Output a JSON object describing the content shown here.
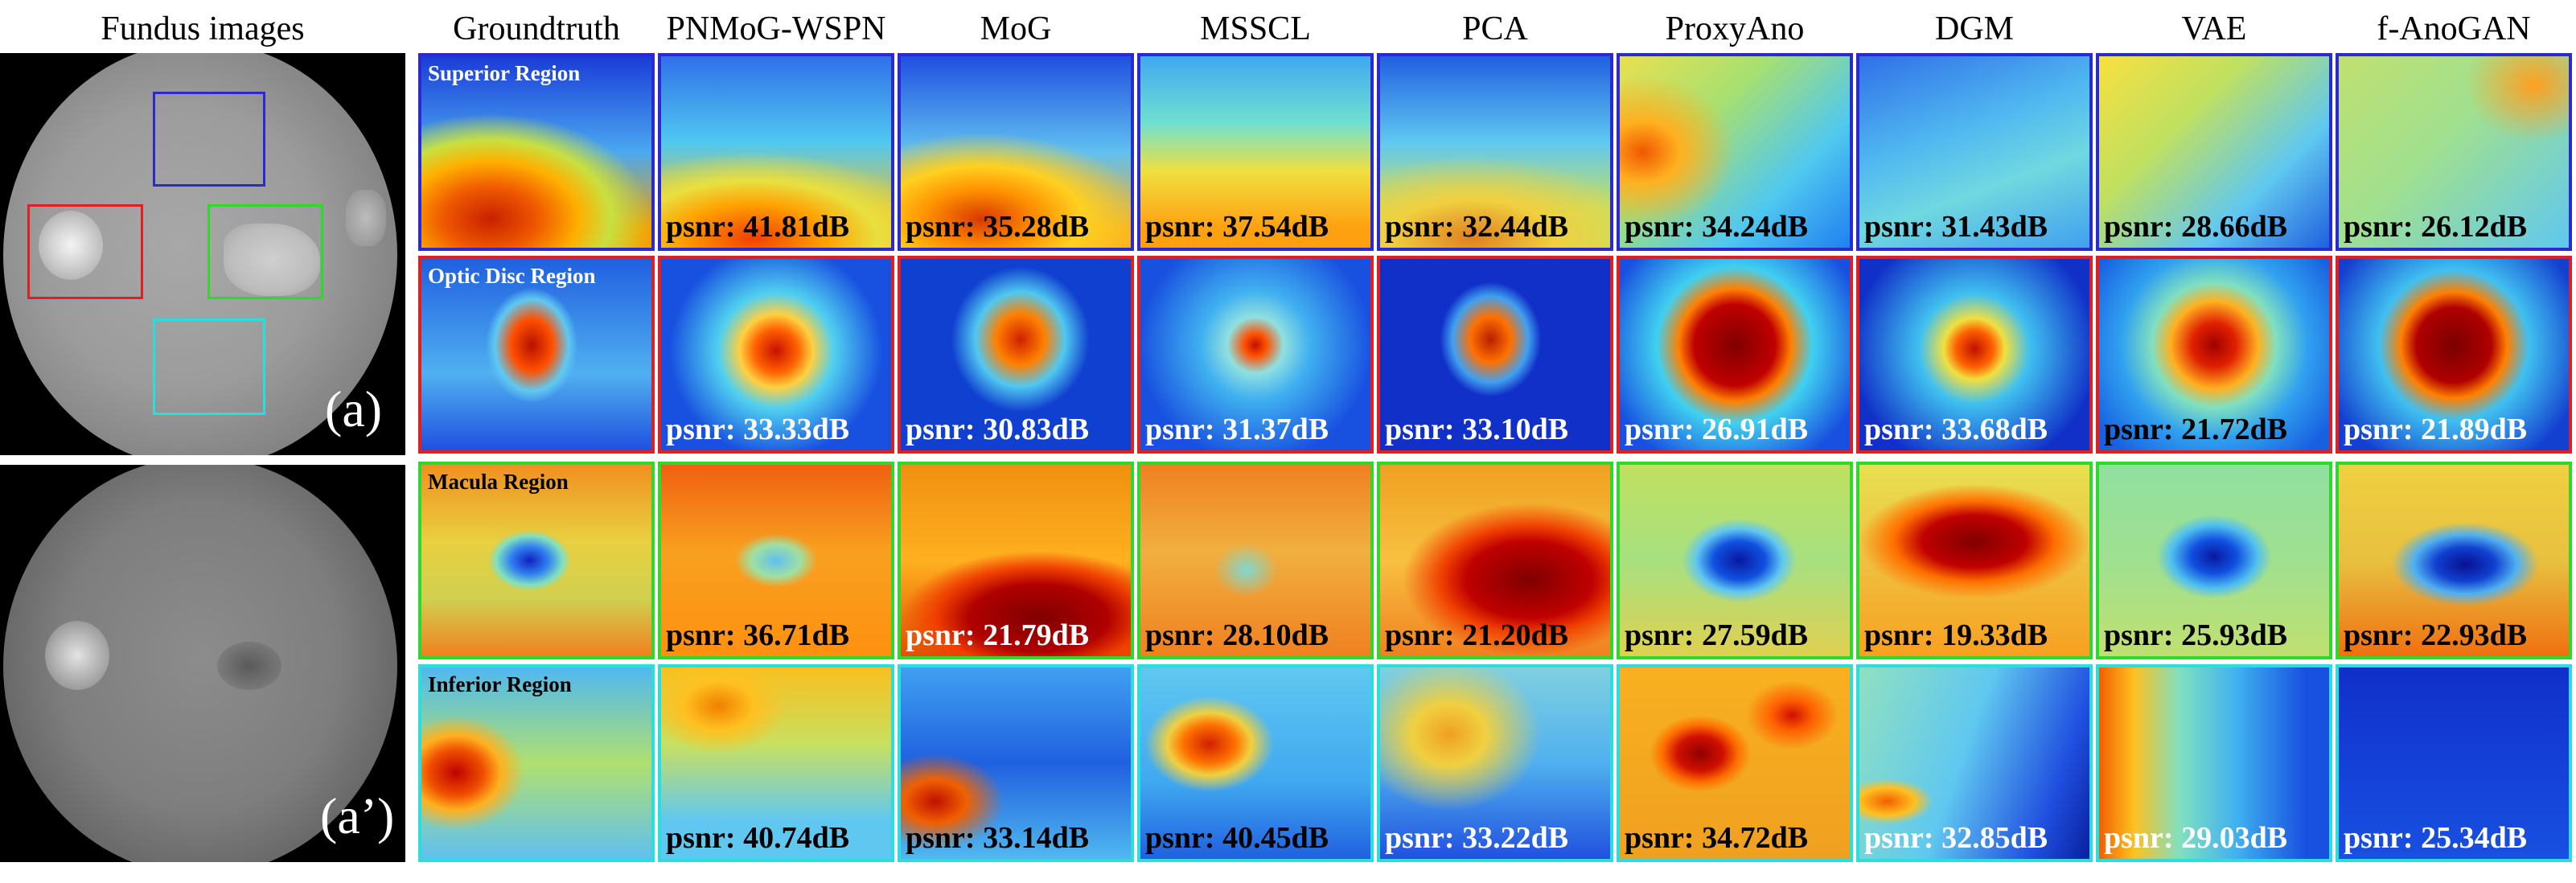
{
  "headers": {
    "fundus": "Fundus images",
    "cols": [
      "Groundtruth",
      "PNMoG-WSPN",
      "MoG",
      "MSSCL",
      "PCA",
      "ProxyAno",
      "DGM",
      "VAE",
      "f-AnoGAN"
    ]
  },
  "fundus_labels": {
    "a": "(a)",
    "a2": "(a’)"
  },
  "colors": {
    "superior": "#2a2ad0",
    "optic": "#e02020",
    "macula": "#2ed82e",
    "inferior": "#2adede",
    "psnr_dark": "#000000",
    "psnr_light": "#ffffff"
  },
  "rows": [
    {
      "region": "Superior Region",
      "border": "superior",
      "label_color": "#ffffff",
      "psnr": [
        "",
        "psnr: 41.81dB",
        "psnr: 35.28dB",
        "psnr: 37.54dB",
        "psnr: 32.44dB",
        "psnr: 34.24dB",
        "psnr: 31.43dB",
        "psnr: 28.66dB",
        "psnr: 26.12dB"
      ],
      "psnr_color": [
        "",
        "dark",
        "dark",
        "dark",
        "dark",
        "dark",
        "dark",
        "dark",
        "dark"
      ],
      "heat": [
        "radial-gradient(ellipse 70% 55% at 30% 85%, #c82000 0%, #f05a00 30%, #ffb000 55%, #c8e040 75%, rgba(60,170,255,0) 100%), linear-gradient(#1a3cd8, #4aa8f0 50%, #f4a000 90%)",
        "radial-gradient(ellipse 90% 50% at 40% 95%, #f04000 0%, #ffa000 35%, #e8e040 60%, rgba(70,200,230,0) 90%), linear-gradient(#3070e8, #50c8f0 45%, #f8c020 85%)",
        "radial-gradient(ellipse 80% 50% at 35% 85%, #d83800 0%, #ff9000 30%, #ffd020 55%, rgba(80,200,230,0) 90%), linear-gradient(#2050e0, #60c0f0 50%, #f8b020 90%)",
        "linear-gradient(#40a8f0, #70e0d0 35%, #f0e040 60%, #ffa010 90%)",
        "radial-gradient(ellipse 90% 50% at 40% 95%, #e08020 0%, #f0d040 40%, rgba(100,210,210,0) 85%), linear-gradient(#2060e0, #60c8f0 45%, #c8e060 80%)",
        "radial-gradient(ellipse 40% 40% at 10% 50%, #f05800 0%, #ffb020 40%, rgba(240,230,60,0) 100%), linear-gradient(135deg, #e8e050, #a8e070 35%, #50c8f0 70%, #2080f0)",
        "linear-gradient(160deg, #3070e8, #50b8f0 40%, #70d8e0 65%, #40a0f0)",
        "linear-gradient(135deg, #f8e040, #c0e060 35%, #60c8f0 70%, #2060e0)",
        "radial-gradient(ellipse 30% 30% at 85% 15%, #ffa020, rgba(240,220,80,0) 100%), linear-gradient(135deg, #c0e070, #a0e090 45%, #60c8f0)"
      ]
    },
    {
      "region": "Optic Disc Region",
      "border": "optic",
      "label_color": "#ffffff",
      "psnr": [
        "",
        "psnr: 33.33dB",
        "psnr: 30.83dB",
        "psnr: 31.37dB",
        "psnr: 33.10dB",
        "psnr: 26.91dB",
        "psnr: 33.68dB",
        "psnr: 21.72dB",
        "psnr: 21.89dB"
      ],
      "psnr_color": [
        "",
        "light",
        "light",
        "light",
        "light",
        "light",
        "light",
        "dark",
        "light"
      ],
      "heat": [
        "radial-gradient(ellipse 20% 30% at 48% 45%, #b81000 0%, #ff5000 45%, #60c8f0 80%, rgba(40,130,240,0) 100%), linear-gradient(#2060e0, #50b0f0 60%, #2050e0)",
        "radial-gradient(circle at 50% 48%, #c81000 0%, #ff6000 14%, #ffd040 24%, #50d0f0 38%, #1850e0 70%)",
        "radial-gradient(ellipse 30% 38% at 52% 42%, #d02000 0%, #ff8000 35%, #50c8f0 65%, #1040d0 100%)",
        "radial-gradient(circle at 50% 45%, #c01000 0%, #ff5000 7%, #90e0e0 18%, #40b0f0 35%, #1850e0 75%)",
        "radial-gradient(ellipse 22% 30% at 48% 42%, #b82000 0%, #ff7000 40%, #40a0f0 75%, #1030c8 100%)",
        "radial-gradient(circle at 50% 45%, #800000 0%, #c00000 26%, #ff8000 36%, #40d0f0 50%, #1850e0 85%)",
        "radial-gradient(circle at 50% 47%, #c01000 0%, #ff6000 12%, #f0e040 20%, #40c0f0 36%, #1030c8 80%)",
        "radial-gradient(circle at 50% 45%, #a00000 0%, #e02000 14%, #ffb020 28%, #80e0c0 40%, #30a0f0 60%, #1860e0 90%)",
        "radial-gradient(circle at 50% 45%, #7a0000 0%, #b00000 24%, #ff8000 34%, #40c0f0 48%, #1440d0 85%)"
      ]
    },
    {
      "region": "Macula Region",
      "border": "macula",
      "label_color": "#000000",
      "psnr": [
        "",
        "psnr: 36.71dB",
        "psnr: 21.79dB",
        "psnr: 28.10dB",
        "psnr: 21.20dB",
        "psnr: 27.59dB",
        "psnr: 19.33dB",
        "psnr: 25.93dB",
        "psnr: 22.93dB"
      ],
      "psnr_color": [
        "",
        "dark",
        "light",
        "dark",
        "dark",
        "dark",
        "dark",
        "dark",
        "dark"
      ],
      "heat": [
        "radial-gradient(ellipse 18% 16% at 47% 50%, #1020c0 0%, #3080f0 45%, #80e0c0 80%, rgba(230,220,80,0) 100%), linear-gradient(#f09020, #e8d040 40%, #d0d050 70%, #f08020)",
        "radial-gradient(ellipse 18% 14% at 50% 50%, #60c0f0 0%, #a0e0a0 60%, rgba(240,180,60,0) 100%), linear-gradient(#f06010, #f8a020 45%, #ff9010)",
        "radial-gradient(ellipse 60% 35% at 60% 80%, #800000 0%, #b00000 50%, #f04000 75%, rgba(255,150,30,0) 100%), linear-gradient(#f09010, #ffb020 50%, #e05000)",
        "radial-gradient(ellipse 14% 14% at 46% 55%, #80d8d0 0%, rgba(240,170,60,0) 100%), linear-gradient(#f08020, #f0b040 45%, #f08020)",
        "radial-gradient(ellipse 55% 40% at 65% 60%, #800000 0%, #c00000 50%, #f04000 70%, rgba(255,180,40,0) 100%), linear-gradient(#f0a020, #f8c040 50%, #f08020)",
        "radial-gradient(ellipse 25% 22% at 52% 50%, #0818a0 0%, #1050e0 45%, #60c8f0 75%, rgba(200,230,90,0) 100%), linear-gradient(#c0e060, #a8e080 50%, #e0d050)",
        "radial-gradient(ellipse 50% 30% at 50% 40%, #800000 0%, #c00000 45%, #ff7000 70%, rgba(240,210,70,0) 100%), linear-gradient(#e8e050, #f0c040 50%, #f8a020)",
        "radial-gradient(ellipse 25% 22% at 50% 48%, #0818a0 0%, #1050e0 40%, #50c0f0 75%, rgba(160,230,150,0) 100%), linear-gradient(#90e0a0, #a0e090 50%, #c0e070)",
        "radial-gradient(ellipse 32% 22% at 55% 52%, #081090 0%, #1040d0 40%, #50b0f0 70%, rgba(230,200,70,0) 100%), linear-gradient(#f0d040, #e8c040 50%, #f07010)"
      ]
    },
    {
      "region": "Inferior Region",
      "border": "inferior",
      "label_color": "#000000",
      "psnr": [
        "",
        "psnr: 40.74dB",
        "psnr: 33.14dB",
        "psnr: 40.45dB",
        "psnr: 33.22dB",
        "psnr: 34.72dB",
        "psnr: 32.85dB",
        "psnr: 29.03dB",
        "psnr: 25.34dB"
      ],
      "psnr_color": [
        "",
        "dark",
        "dark",
        "dark",
        "light",
        "dark",
        "light",
        "light",
        "light"
      ],
      "heat": [
        "radial-gradient(ellipse 30% 30% at 15% 55%, #c00000 0%, #f05000 40%, #ffb020 65%, rgba(200,230,80,0) 100%), linear-gradient(#50b8f0, #b0e070 50%, #60c0f0)",
        "radial-gradient(ellipse 30% 25% at 25% 20%, #f08000 0%, #ffc020 50%, rgba(120,210,200,0) 100%), linear-gradient(#f8c020, #c8e060 40%, #60c8f0 80%)",
        "radial-gradient(ellipse 30% 25% at 15% 70%, #c01000 0%, #f06000 45%, rgba(80,180,240,0) 100%), linear-gradient(#40a0f0, #2060e0 50%, #50b8f0)",
        "radial-gradient(ellipse 28% 25% at 30% 40%, #d02000 0%, #ff7000 40%, #f0d040 65%, rgba(80,200,240,0) 100%), linear-gradient(#60c8f0, #40a8f0 60%, #2060e0)",
        "radial-gradient(ellipse 40% 40% at 30% 35%, #f0a020 0%, #f0d040 40%, rgba(110,200,220,0) 100%), linear-gradient(#80d0e0, #50b0f0 50%, #2050e0)",
        "radial-gradient(ellipse 22% 20% at 35% 45%, #900000 0%, #d01000 45%, #ff7000 75%, rgba(240,200,60,0) 100%), radial-gradient(ellipse 20% 18% at 75% 25%, #d01000 0%, #ff6000 45%, rgba(240,200,60,0) 100%), linear-gradient(#f8b020, #f0a020)",
        "radial-gradient(ellipse 20% 12% at 12% 70%, #f06000 0%, #ffc020 60%, rgba(120,220,200,0) 100%), linear-gradient(110deg, #90e0c0, #60c8f0 45%, #2050e0 80%, #0820a0)",
        "linear-gradient(90deg, #f06000, #ffc020 15%, #80e0c0 35%, #40b0f0 60%, #1850e0 90%)",
        "linear-gradient(#1030c8, #1440d8 50%, #1850e0)"
      ]
    }
  ]
}
